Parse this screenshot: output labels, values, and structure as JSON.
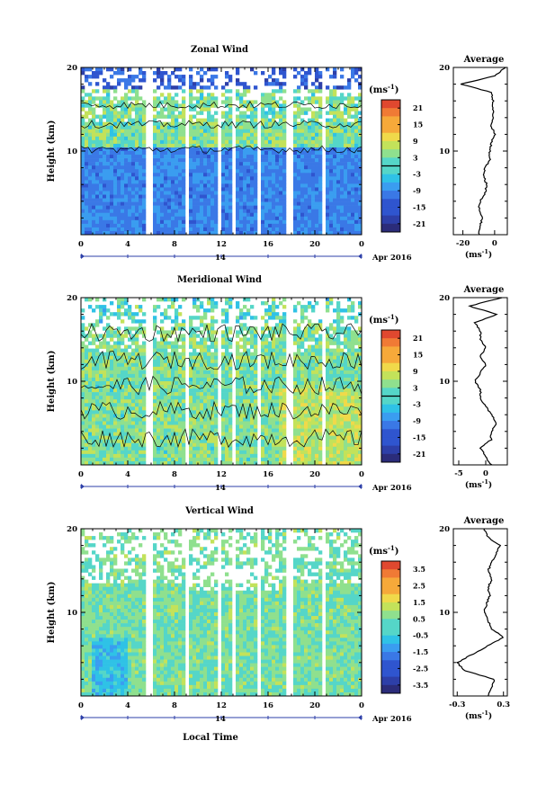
{
  "colors": {
    "scale": [
      "#2b2c7a",
      "#2d3fa8",
      "#2f55cf",
      "#3a78e6",
      "#3a9df0",
      "#2fc2e6",
      "#55d6c8",
      "#8fe08e",
      "#c3e25a",
      "#f0d94a",
      "#f6a93a",
      "#f07a35",
      "#e0482f"
    ],
    "contour": "#000000",
    "gap": "#ffffff"
  },
  "common": {
    "ylabel": "Height (km)",
    "yticks": [
      "20",
      "10"
    ],
    "xticks": [
      "0",
      "4",
      "8",
      "12",
      "16",
      "20",
      "0"
    ],
    "date_day": "14",
    "date_label": "Apr 2016",
    "unit": "(ms",
    "unit_exp": "-1",
    "unit_close": ")",
    "avg_title": "Average",
    "xlabel_bottom": "Local Time"
  },
  "chart_data": [
    {
      "type": "heatmap",
      "title": "Zonal Wind",
      "colorbar_ticks": [
        "21",
        "15",
        "9",
        "3",
        "-3",
        "-9",
        "-15",
        "-21"
      ],
      "colorbar_range": [
        -24,
        24
      ],
      "ylim": [
        0,
        20
      ],
      "xlim": [
        0,
        24
      ],
      "average_profile": {
        "xticks": [
          "-20",
          "0"
        ],
        "xlim": [
          -26,
          8
        ],
        "height": [
          0,
          1,
          2,
          3,
          4,
          5,
          6,
          7,
          8,
          9,
          10,
          11,
          12,
          13,
          14,
          15,
          16,
          17,
          18,
          19,
          20
        ],
        "values": [
          -10,
          -9,
          -8,
          -10,
          -9,
          -6,
          -5,
          -7,
          -6,
          -3,
          -3,
          -2,
          0,
          -2,
          -1,
          -1,
          -1,
          -2,
          -21,
          0,
          7
        ]
      }
    },
    {
      "type": "heatmap",
      "title": "Meridional Wind",
      "colorbar_ticks": [
        "21",
        "15",
        "9",
        "3",
        "-3",
        "-9",
        "-15",
        "-21"
      ],
      "colorbar_range": [
        -24,
        24
      ],
      "ylim": [
        0,
        20
      ],
      "xlim": [
        0,
        24
      ],
      "average_profile": {
        "xticks": [
          "-5",
          "0"
        ],
        "xlim": [
          -6,
          4
        ],
        "height": [
          0,
          1,
          2,
          3,
          4,
          5,
          6,
          7,
          8,
          9,
          10,
          11,
          12,
          13,
          14,
          15,
          16,
          17,
          18,
          19,
          20
        ],
        "values": [
          1,
          0,
          -1,
          1,
          1,
          2,
          1,
          0,
          -1,
          -1,
          -2,
          -1,
          0,
          -1,
          0,
          -1,
          -1,
          -2,
          2,
          -3,
          3
        ]
      }
    },
    {
      "type": "heatmap",
      "title": "Vertical Wind",
      "colorbar_ticks": [
        "3.5",
        "2.5",
        "1.5",
        "0.5",
        "-0.5",
        "-1.5",
        "-2.5",
        "-3.5"
      ],
      "colorbar_range": [
        -4,
        4
      ],
      "ylim": [
        0,
        20
      ],
      "xlim": [
        0,
        24
      ],
      "average_profile": {
        "xticks": [
          "-0.3",
          "0.3"
        ],
        "xlim": [
          -0.35,
          0.35
        ],
        "height": [
          0,
          1,
          2,
          3,
          4,
          5,
          6,
          7,
          8,
          9,
          10,
          11,
          12,
          13,
          14,
          15,
          16,
          17,
          18,
          19,
          20
        ],
        "values": [
          0.1,
          0.15,
          0.18,
          -0.2,
          -0.3,
          -0.1,
          0.1,
          0.3,
          0.15,
          0.1,
          0.05,
          0.08,
          0.12,
          0.1,
          0.15,
          0.1,
          0.15,
          0.2,
          0.25,
          0.1,
          0.05
        ]
      }
    }
  ]
}
